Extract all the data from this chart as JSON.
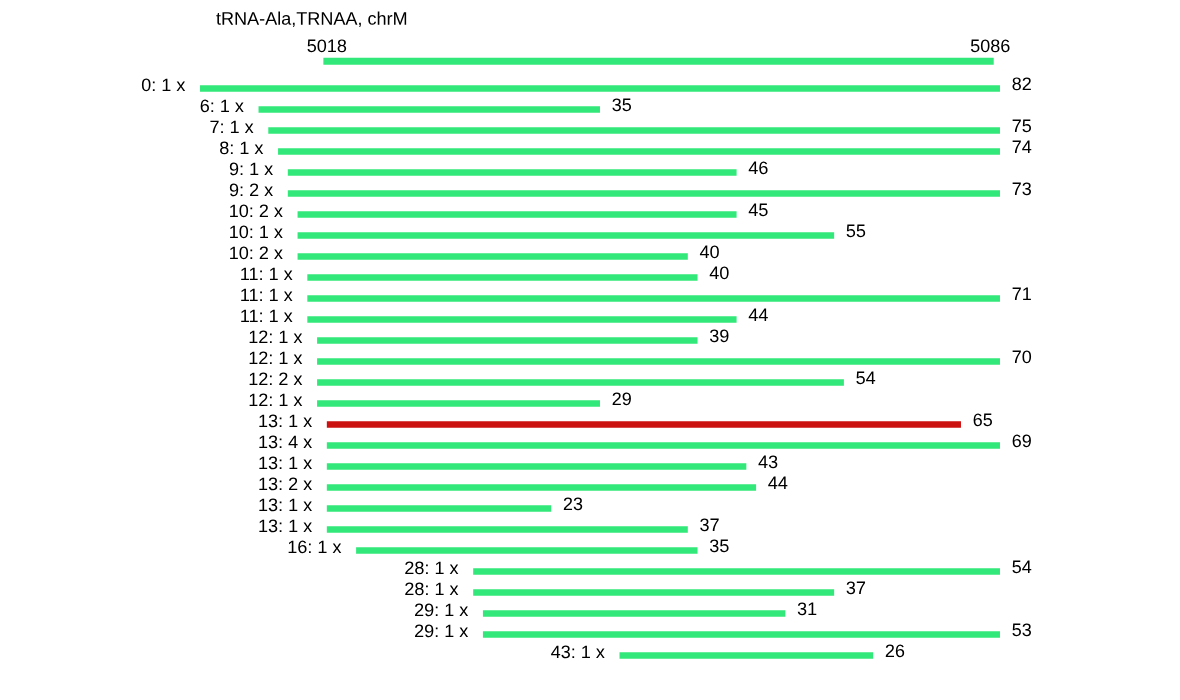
{
  "chart_data": {
    "type": "bar",
    "orientation": "horizontal",
    "title": "tRNA-Ala,TRNAA, chrM",
    "xlim": [
      5005,
      5087
    ],
    "xticks": [
      5018,
      5086
    ],
    "categories": [
      "0: 1 x",
      "6: 1 x",
      "7: 1 x",
      "8: 1 x",
      "9: 1 x",
      "9: 2 x",
      "10: 2 x",
      "10: 1 x",
      "10: 2 x",
      "11: 1 x",
      "11: 1 x",
      "11: 1 x",
      "12: 1 x",
      "12: 1 x",
      "12: 2 x",
      "12: 1 x",
      "13: 1 x",
      "13: 4 x",
      "13: 1 x",
      "13: 2 x",
      "13: 1 x",
      "13: 1 x",
      "16: 1 x",
      "28: 1 x",
      "28: 1 x",
      "29: 1 x",
      "29: 1 x",
      "43: 1 x"
    ],
    "base": [
      5005,
      5011,
      5012,
      5013,
      5014,
      5014,
      5015,
      5015,
      5015,
      5016,
      5016,
      5016,
      5017,
      5017,
      5017,
      5017,
      5018,
      5018,
      5018,
      5018,
      5018,
      5018,
      5021,
      5033,
      5033,
      5034,
      5034,
      5048
    ],
    "values": [
      82,
      35,
      75,
      74,
      46,
      73,
      45,
      55,
      40,
      40,
      71,
      44,
      39,
      70,
      54,
      29,
      65,
      69,
      43,
      44,
      23,
      37,
      35,
      54,
      37,
      31,
      53,
      26
    ],
    "data_labels": true,
    "colors": [
      "#33e87a",
      "#33e87a",
      "#33e87a",
      "#33e87a",
      "#33e87a",
      "#33e87a",
      "#33e87a",
      "#33e87a",
      "#33e87a",
      "#33e87a",
      "#33e87a",
      "#33e87a",
      "#33e87a",
      "#33e87a",
      "#33e87a",
      "#33e87a",
      "#cc1111",
      "#33e87a",
      "#33e87a",
      "#33e87a",
      "#33e87a",
      "#33e87a",
      "#33e87a",
      "#33e87a",
      "#33e87a",
      "#33e87a",
      "#33e87a",
      "#33e87a"
    ]
  }
}
